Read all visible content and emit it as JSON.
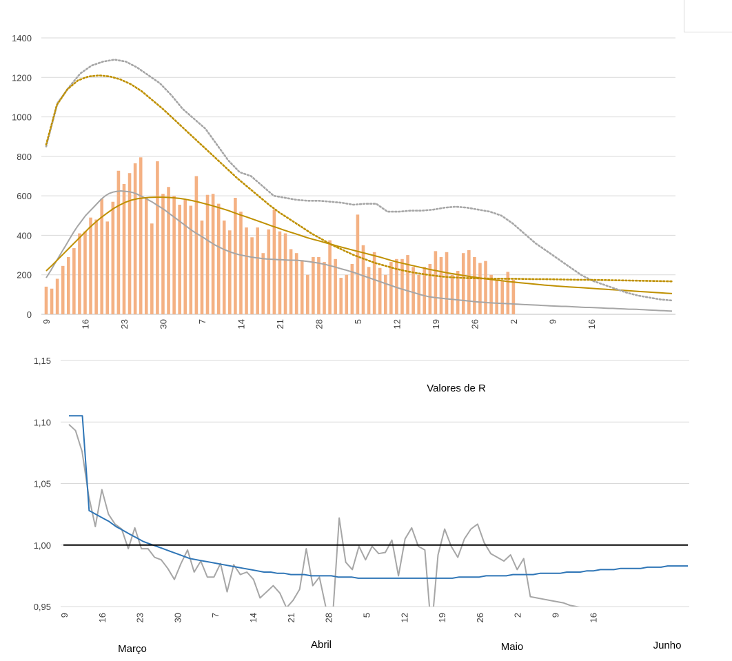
{
  "chart_data": [
    {
      "type": "bar",
      "title": "",
      "xlabel": "",
      "ylabel": "",
      "ylim": [
        0,
        1400
      ],
      "yticks": [
        0,
        200,
        400,
        600,
        800,
        1000,
        1200,
        1400
      ],
      "day_ticks": [
        "9",
        "16",
        "23",
        "30",
        "7",
        "14",
        "21",
        "28",
        "5",
        "12",
        "19",
        "26",
        "2",
        "9",
        "16"
      ],
      "grid": true,
      "legend": "none",
      "x_start": "9 Março",
      "series": [
        {
          "type": "bar",
          "color": "#f4b183",
          "values": [
            140,
            130,
            180,
            245,
            290,
            335,
            410,
            420,
            490,
            480,
            585,
            470,
            570,
            727,
            660,
            715,
            765,
            795,
            590,
            460,
            775,
            610,
            645,
            600,
            555,
            580,
            550,
            700,
            475,
            605,
            610,
            560,
            475,
            425,
            590,
            520,
            440,
            390,
            440,
            310,
            430,
            530,
            420,
            410,
            330,
            310,
            275,
            200,
            290,
            290,
            265,
            375,
            280,
            185,
            200,
            255,
            505,
            350,
            240,
            315,
            235,
            200,
            265,
            280,
            280,
            300,
            240,
            200,
            240,
            255,
            320,
            290,
            315,
            200,
            220,
            310,
            325,
            290,
            260,
            270,
            200,
            170,
            170,
            215,
            175
          ]
        },
        {
          "type": "line",
          "color": "#a6a6a6",
          "values": [
            185,
            216,
            250,
            283,
            317,
            350,
            384,
            417,
            447,
            473,
            500,
            521,
            541,
            562,
            583,
            600,
            612,
            619,
            623,
            625,
            623,
            621,
            617,
            610,
            600,
            590,
            579,
            568,
            555,
            543,
            530,
            515,
            500,
            485,
            470,
            455,
            440,
            425,
            412,
            400,
            388,
            375,
            362,
            350,
            340,
            330,
            322,
            314,
            308,
            302,
            298,
            294,
            290,
            287,
            285,
            282,
            280,
            279,
            278,
            277,
            276,
            275,
            274,
            274,
            273,
            271,
            269,
            266,
            263,
            260,
            256,
            252,
            247,
            242,
            236,
            230,
            225,
            219,
            213,
            206,
            199,
            192,
            185,
            178,
            171,
            164,
            157,
            150,
            143,
            136,
            130,
            124,
            118,
            112,
            106,
            100,
            95,
            90,
            87,
            84,
            82,
            80,
            78,
            76,
            74,
            72,
            70,
            68,
            66,
            64,
            62,
            61,
            59,
            58,
            57,
            56,
            55,
            54,
            53,
            52,
            51,
            50,
            49,
            48,
            47,
            46,
            45,
            44,
            43,
            42,
            41,
            40,
            40,
            39,
            38,
            37,
            36,
            35,
            35,
            34,
            33,
            32,
            31,
            30,
            30,
            29,
            28,
            27,
            26,
            26,
            25,
            24,
            23,
            22,
            21,
            20,
            19,
            18,
            17,
            16
          ]
        },
        {
          "type": "line",
          "color": "#bf9000",
          "values": [
            220,
            249,
            280,
            311,
            342,
            373,
            404,
            435,
            463,
            489,
            512,
            534,
            552,
            567,
            578,
            585,
            589,
            592,
            593,
            593,
            592,
            590,
            587,
            582,
            576,
            569,
            561,
            553,
            544,
            535,
            525,
            514,
            503,
            493,
            482,
            471,
            460,
            449,
            439,
            428,
            418,
            408,
            398,
            388,
            379,
            371,
            362,
            354,
            345,
            337,
            329,
            321,
            313,
            305,
            297,
            289,
            280,
            271,
            263,
            256,
            249,
            242,
            235,
            228,
            222,
            216,
            210,
            205,
            200,
            195,
            190,
            186,
            181,
            177,
            173,
            170,
            166,
            163,
            160,
            157,
            154,
            151,
            148,
            146,
            143,
            141,
            139,
            137,
            135,
            133,
            131,
            129,
            127,
            125,
            123,
            121,
            119,
            117,
            115,
            113,
            111,
            109,
            107,
            105
          ]
        },
        {
          "type": "line",
          "style": "dotted",
          "color": "#a6a6a6",
          "values": [
            850,
            1070,
            1150,
            1220,
            1260,
            1280,
            1290,
            1280,
            1250,
            1210,
            1170,
            1110,
            1040,
            990,
            940,
            860,
            780,
            720,
            700,
            650,
            600,
            590,
            580,
            575,
            575,
            570,
            565,
            555,
            560,
            560,
            520,
            520,
            525,
            525,
            530,
            540,
            545,
            540,
            530,
            520,
            500,
            460,
            410,
            360,
            320,
            280,
            240,
            200,
            170,
            150,
            130,
            110,
            95,
            85,
            75,
            70
          ]
        },
        {
          "type": "line",
          "style": "dotted",
          "color": "#bf9000",
          "values": [
            860,
            1060,
            1140,
            1185,
            1205,
            1210,
            1205,
            1190,
            1165,
            1130,
            1085,
            1040,
            990,
            940,
            890,
            840,
            790,
            740,
            690,
            645,
            600,
            555,
            515,
            480,
            445,
            410,
            380,
            350,
            325,
            300,
            280,
            260,
            245,
            230,
            218,
            208,
            200,
            193,
            188,
            185,
            183,
            182,
            181,
            180,
            180,
            179,
            178,
            178,
            177,
            176,
            175,
            175,
            174,
            173,
            172,
            171,
            170,
            169,
            168,
            167
          ]
        }
      ]
    },
    {
      "type": "line",
      "title": "Valores de R",
      "xlabel": "",
      "ylabel": "",
      "ylim": [
        0.95,
        1.15
      ],
      "yticks": [
        "0,95",
        "1,00",
        "1,05",
        "1,10",
        "1,15"
      ],
      "day_ticks": [
        "9",
        "16",
        "23",
        "30",
        "7",
        "14",
        "21",
        "28",
        "5",
        "12",
        "19",
        "26",
        "2",
        "9",
        "16"
      ],
      "month_labels": [
        "Março",
        "Abril",
        "Maio",
        "Junho"
      ],
      "grid": true,
      "legend": "none",
      "reference_line": 1.0,
      "series": [
        {
          "type": "line",
          "color": "#a6a6a6",
          "values": [
            1.098,
            1.093,
            1.076,
            1.04,
            1.015,
            1.045,
            1.025,
            1.017,
            1.013,
            0.997,
            1.014,
            0.997,
            0.997,
            0.99,
            0.988,
            0.981,
            0.972,
            0.985,
            0.996,
            0.978,
            0.987,
            0.974,
            0.974,
            0.985,
            0.962,
            0.984,
            0.976,
            0.978,
            0.972,
            0.957,
            0.962,
            0.967,
            0.961,
            0.949,
            0.955,
            0.964,
            0.997,
            0.967,
            0.974,
            0.949,
            0.94,
            1.022,
            0.986,
            0.98,
            0.999,
            0.988,
            0.999,
            0.993,
            0.994,
            1.004,
            0.975,
            1.005,
            1.014,
            0.999,
            0.996,
            0.93,
            0.992,
            1.013,
            0.999,
            0.99,
            1.005,
            1.013,
            1.017,
            1.002,
            0.993,
            0.99,
            0.987,
            0.992,
            0.98,
            0.989,
            0.958,
            0.957,
            0.956,
            0.955,
            0.954,
            0.953,
            0.951,
            0.95,
            0.949,
            0.948,
            0.947
          ]
        },
        {
          "type": "line",
          "color": "#2e75b6",
          "values": [
            1.105,
            1.105,
            1.105,
            1.028,
            1.025,
            1.022,
            1.019,
            1.015,
            1.012,
            1.009,
            1.006,
            1.003,
            1.001,
            0.999,
            0.997,
            0.995,
            0.993,
            0.991,
            0.989,
            0.988,
            0.987,
            0.986,
            0.985,
            0.984,
            0.983,
            0.982,
            0.981,
            0.98,
            0.979,
            0.978,
            0.978,
            0.977,
            0.977,
            0.976,
            0.976,
            0.976,
            0.975,
            0.975,
            0.975,
            0.975,
            0.974,
            0.974,
            0.974,
            0.973,
            0.973,
            0.973,
            0.973,
            0.973,
            0.973,
            0.973,
            0.973,
            0.973,
            0.973,
            0.973,
            0.973,
            0.973,
            0.973,
            0.973,
            0.974,
            0.974,
            0.974,
            0.974,
            0.975,
            0.975,
            0.975,
            0.975,
            0.976,
            0.976,
            0.976,
            0.976,
            0.977,
            0.977,
            0.977,
            0.977,
            0.978,
            0.978,
            0.978,
            0.979,
            0.979,
            0.98,
            0.98,
            0.98,
            0.981,
            0.981,
            0.981,
            0.981,
            0.982,
            0.982,
            0.982,
            0.983,
            0.983,
            0.983,
            0.983
          ]
        },
        {
          "type": "line",
          "color": "#000000",
          "values": [
            1.0,
            1.0
          ]
        }
      ]
    }
  ]
}
